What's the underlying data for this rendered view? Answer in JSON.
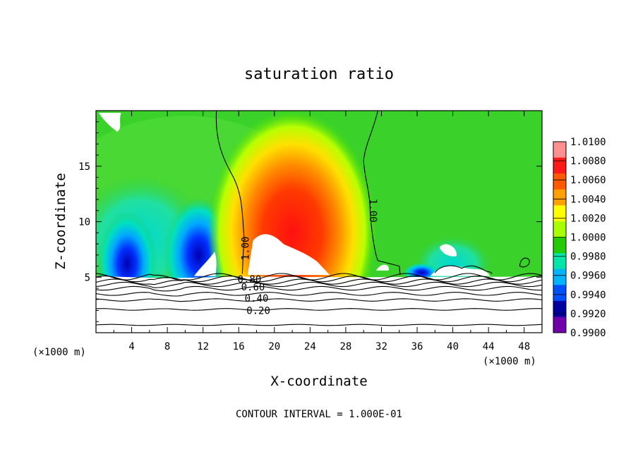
{
  "chart_data": {
    "type": "heatmap",
    "title": "saturation ratio",
    "xlabel": "X-coordinate",
    "ylabel": "Z-coordinate",
    "x_unit_left": "(×1000 m)",
    "x_unit_right": "(×1000 m)",
    "xlim": [
      0,
      50
    ],
    "ylim": [
      0,
      20
    ],
    "xticks": [
      4,
      8,
      12,
      16,
      20,
      24,
      28,
      32,
      36,
      40,
      44,
      48
    ],
    "yticks": [
      5,
      10,
      15
    ],
    "colorbar": {
      "labels": [
        "1.0100",
        "1.0080",
        "1.0060",
        "1.0040",
        "1.0020",
        "1.0000",
        "0.9980",
        "0.9960",
        "0.9940",
        "0.9920",
        "0.9900"
      ],
      "colors": [
        "#ff9090",
        "#ff1a1a",
        "#ff5a00",
        "#ff9f00",
        "#ffff00",
        "#a8ff00",
        "#22cc00",
        "#00e5a8",
        "#00b4ff",
        "#0050ff",
        "#0000a0",
        "#7000a8"
      ]
    },
    "contour_labels": [
      {
        "text": "1.00",
        "x": 16.8,
        "z": 7.6,
        "rotate": -90
      },
      {
        "text": "1.00",
        "x": 31.0,
        "z": 11.0,
        "rotate": 90
      },
      {
        "text": "0.80",
        "x": 17.2,
        "z": 4.75,
        "rotate": 0
      },
      {
        "text": "0.60",
        "x": 17.6,
        "z": 4.05,
        "rotate": 0
      },
      {
        "text": "0.40",
        "x": 18.0,
        "z": 3.05,
        "rotate": 0
      },
      {
        "text": "0.20",
        "x": 18.2,
        "z": 1.95,
        "rotate": 0
      }
    ],
    "footer": "CONTOUR INTERVAL = 1.000E-01"
  }
}
